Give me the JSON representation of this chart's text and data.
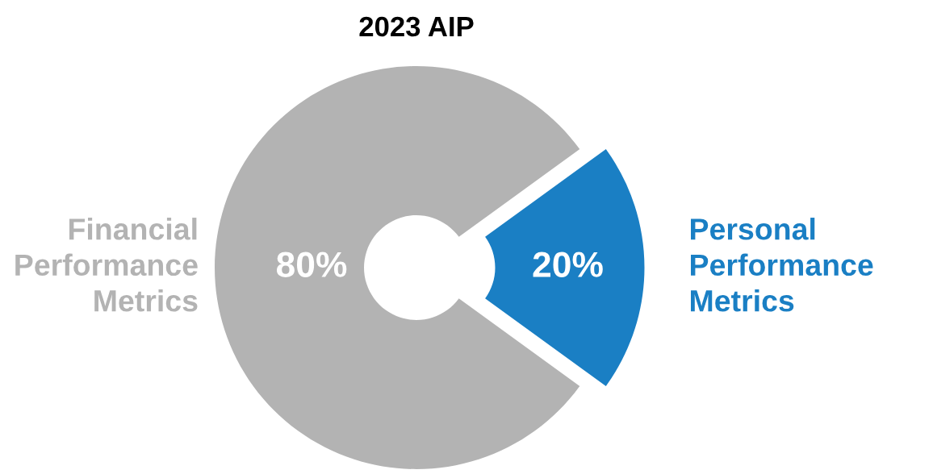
{
  "chart_data": {
    "type": "donut",
    "title": "2023 AIP",
    "categories": [
      "Financial\nPerformance\nMetrics",
      "Personal\nPerformance\nMetrics"
    ],
    "values": [
      80,
      20
    ],
    "colors": [
      "#b3b3b3",
      "#1a7fc4"
    ],
    "value_labels": [
      "80%",
      "20%"
    ],
    "legend": false
  }
}
